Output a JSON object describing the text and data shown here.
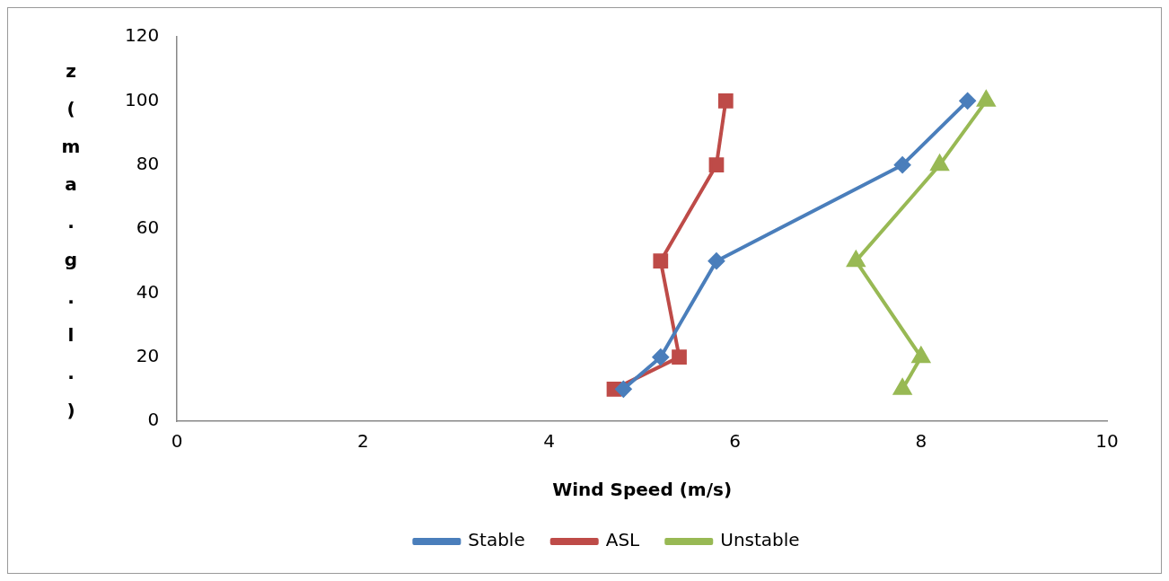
{
  "chart_data": {
    "type": "line",
    "xlabel": "Wind Speed (m/s)",
    "ylabel": "z (m a.g.l.)",
    "xlim": [
      0,
      10
    ],
    "xticks": [
      0,
      2,
      4,
      6,
      8,
      10
    ],
    "ylim": [
      0,
      120
    ],
    "yticks": [
      0,
      20,
      40,
      60,
      80,
      100,
      120
    ],
    "grid": false,
    "legend": "bottom",
    "series": [
      {
        "name": "Stable",
        "color": "#4a7ebb",
        "marker": "diamond",
        "x": [
          4.8,
          5.2,
          5.8,
          7.8,
          8.5
        ],
        "values": [
          10,
          20,
          50,
          80,
          100
        ]
      },
      {
        "name": "ASL",
        "color": "#be4b48",
        "marker": "square",
        "x": [
          4.7,
          5.4,
          5.2,
          5.8,
          5.9
        ],
        "values": [
          10,
          20,
          50,
          80,
          100
        ]
      },
      {
        "name": "Unstable",
        "color": "#98b954",
        "marker": "triangle",
        "x": [
          7.8,
          8.0,
          7.3,
          8.2,
          8.7
        ],
        "values": [
          10,
          20,
          50,
          80,
          100
        ]
      }
    ]
  }
}
